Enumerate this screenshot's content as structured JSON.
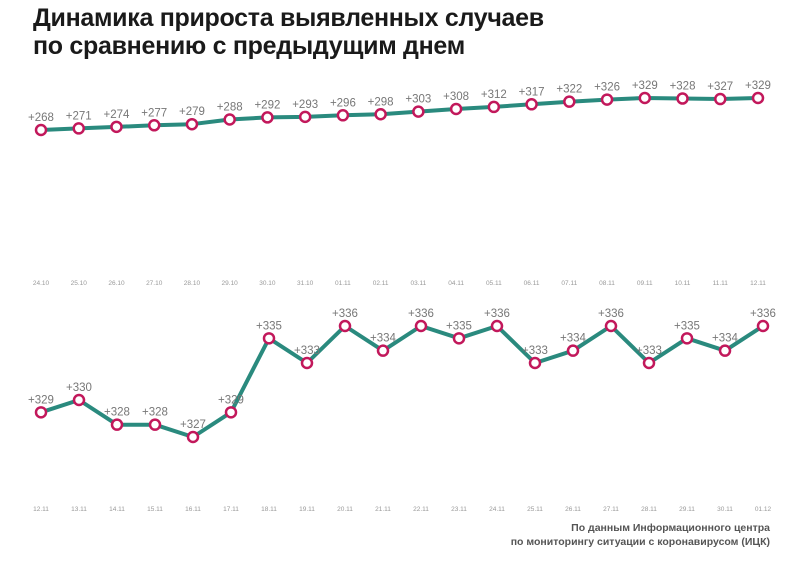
{
  "title": {
    "line1": "Динамика прироста выявленных случаев",
    "line2": "по сравнению с предыдущим днем"
  },
  "source": {
    "line1": "По данным Информационного центра",
    "line2": "по мониторингу ситуации с коронавирусом (ИЦК)"
  },
  "colors": {
    "line": "#2a8a7e",
    "marker_edge": "#c2185b",
    "marker_fill": "#ffffff",
    "label": "#777777",
    "tick": "#999999"
  },
  "chart_data": [
    {
      "type": "line",
      "title": "",
      "xlabel": "",
      "ylabel": "",
      "x": [
        "24.10",
        "25.10",
        "26.10",
        "27.10",
        "28.10",
        "29.10",
        "30.10",
        "31.10",
        "01.11",
        "02.11",
        "03.11",
        "04.11",
        "05.11",
        "06.11",
        "07.11",
        "08.11",
        "09.11",
        "10.11",
        "11.11",
        "12.11"
      ],
      "series": [
        {
          "values": [
            268,
            271,
            274,
            277,
            279,
            288,
            292,
            293,
            296,
            298,
            303,
            308,
            312,
            317,
            322,
            326,
            329,
            328,
            327,
            329
          ],
          "labels": [
            "+268",
            "+271",
            "+274",
            "+277",
            "+279",
            "+288",
            "+292",
            "+293",
            "+296",
            "+298",
            "+303",
            "+308",
            "+312",
            "+317",
            "+322",
            "+326",
            "+329",
            "+328",
            "+327",
            "+329"
          ]
        }
      ],
      "grid": false,
      "axis_lines": false
    },
    {
      "type": "line",
      "title": "",
      "xlabel": "",
      "ylabel": "",
      "x": [
        "12.11",
        "13.11",
        "14.11",
        "15.11",
        "16.11",
        "17.11",
        "18.11",
        "19.11",
        "20.11",
        "21.11",
        "22.11",
        "23.11",
        "24.11",
        "25.11",
        "26.11",
        "27.11",
        "28.11",
        "29.11",
        "30.11",
        "01.12"
      ],
      "series": [
        {
          "values": [
            329,
            330,
            328,
            328,
            327,
            329,
            335,
            333,
            336,
            334,
            336,
            335,
            336,
            333,
            334,
            336,
            333,
            335,
            334,
            336
          ],
          "labels": [
            "+329",
            "+330",
            "+328",
            "+328",
            "+327",
            "+329",
            "+335",
            "+333",
            "+336",
            "+334",
            "+336",
            "+335",
            "+336",
            "+333",
            "+334",
            "+336",
            "+333",
            "+335",
            "+334",
            "+336"
          ]
        }
      ],
      "grid": false,
      "axis_lines": false
    }
  ]
}
